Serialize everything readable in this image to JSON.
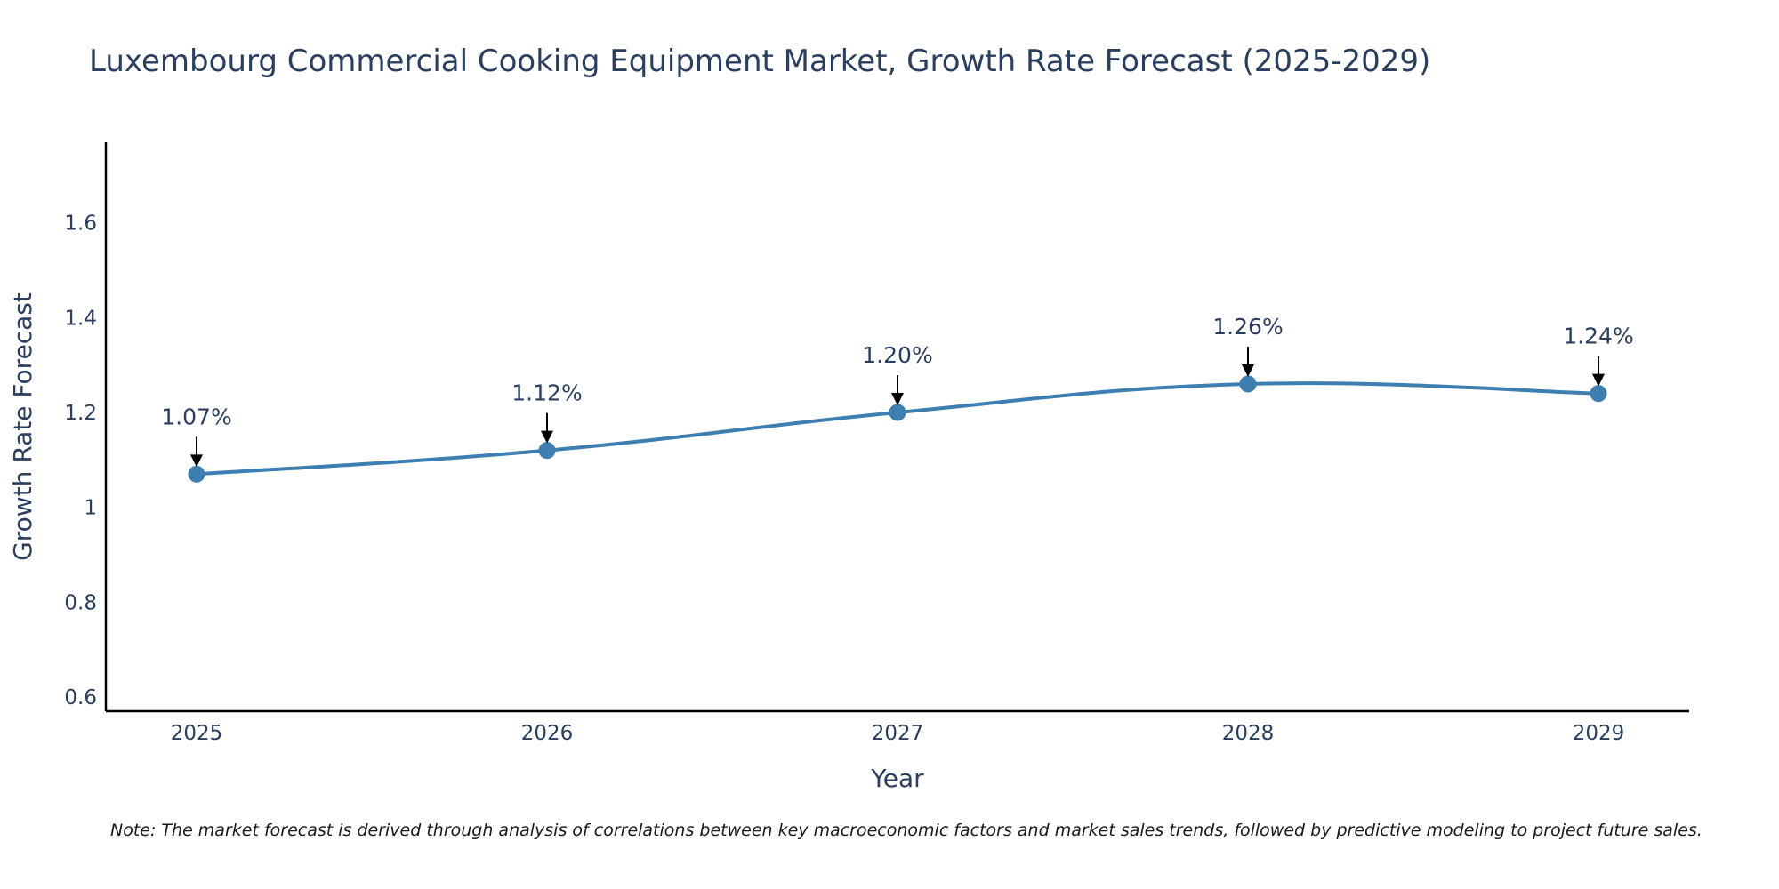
{
  "chart_data": {
    "type": "line",
    "title": "Luxembourg Commercial Cooking Equipment Market, Growth Rate Forecast (2025-2029)",
    "xlabel": "Year",
    "ylabel": "Growth Rate Forecast",
    "categories": [
      "2025",
      "2026",
      "2027",
      "2028",
      "2029"
    ],
    "series": [
      {
        "name": "Growth Rate Forecast",
        "values": [
          1.07,
          1.12,
          1.2,
          1.26,
          1.24
        ]
      }
    ],
    "data_labels": [
      "1.07%",
      "1.12%",
      "1.20%",
      "1.26%",
      "1.24%"
    ],
    "ylim": [
      0.57,
      1.77
    ],
    "yticks": [
      0.6,
      0.8,
      1,
      1.2,
      1.4,
      1.6
    ],
    "ytick_labels": [
      "0.6",
      "0.8",
      "1",
      "1.2",
      "1.4",
      "1.6"
    ],
    "grid": false,
    "line_color": "#3d7fb0",
    "marker_color": "#3d7fb0",
    "note": "Note: The market forecast is derived through analysis of correlations between key macroeconomic factors and market sales trends, followed by predictive modeling to project future sales."
  }
}
